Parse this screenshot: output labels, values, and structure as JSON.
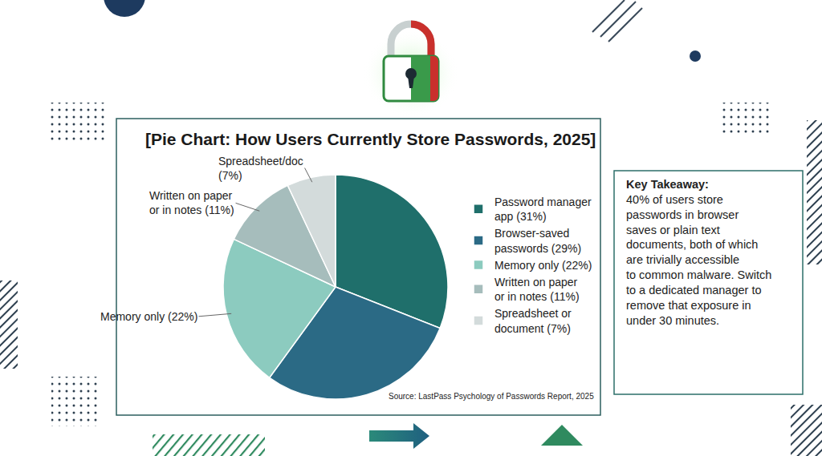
{
  "chart_data": {
    "type": "pie",
    "title": "[Pie Chart: How Users Currently Store Passwords, 2025]",
    "categories": [
      "Password manager app (31%)",
      "Browser-saved passwords (29%)",
      "Memory only (22%)",
      "Written on paper or in notes (11%)",
      "Spreadsheet or document (7%)"
    ],
    "values": [
      31,
      29,
      22,
      11,
      7
    ],
    "colors": [
      "#1f6f6b",
      "#2b6a85",
      "#8ccbbf",
      "#a6bdbc",
      "#d3dbdb"
    ],
    "legend": "right",
    "annotations": {
      "slice_labels": [
        null,
        null,
        "Memory only (22%)",
        "Written on paper or in notes (11%)",
        "Spreadsheet/doc (7%)"
      ],
      "source": "Source: LastPass Psychology of Passwords Report, 2025",
      "key_takeaway_heading": "Key Takeaway:",
      "key_takeaway_text": "40% of users store passwords in browser saves or plain text documents, both of which are trivially accessible to common malware. Switch to a dedicated manager to remove that exposure in under 30 minutes."
    }
  }
}
